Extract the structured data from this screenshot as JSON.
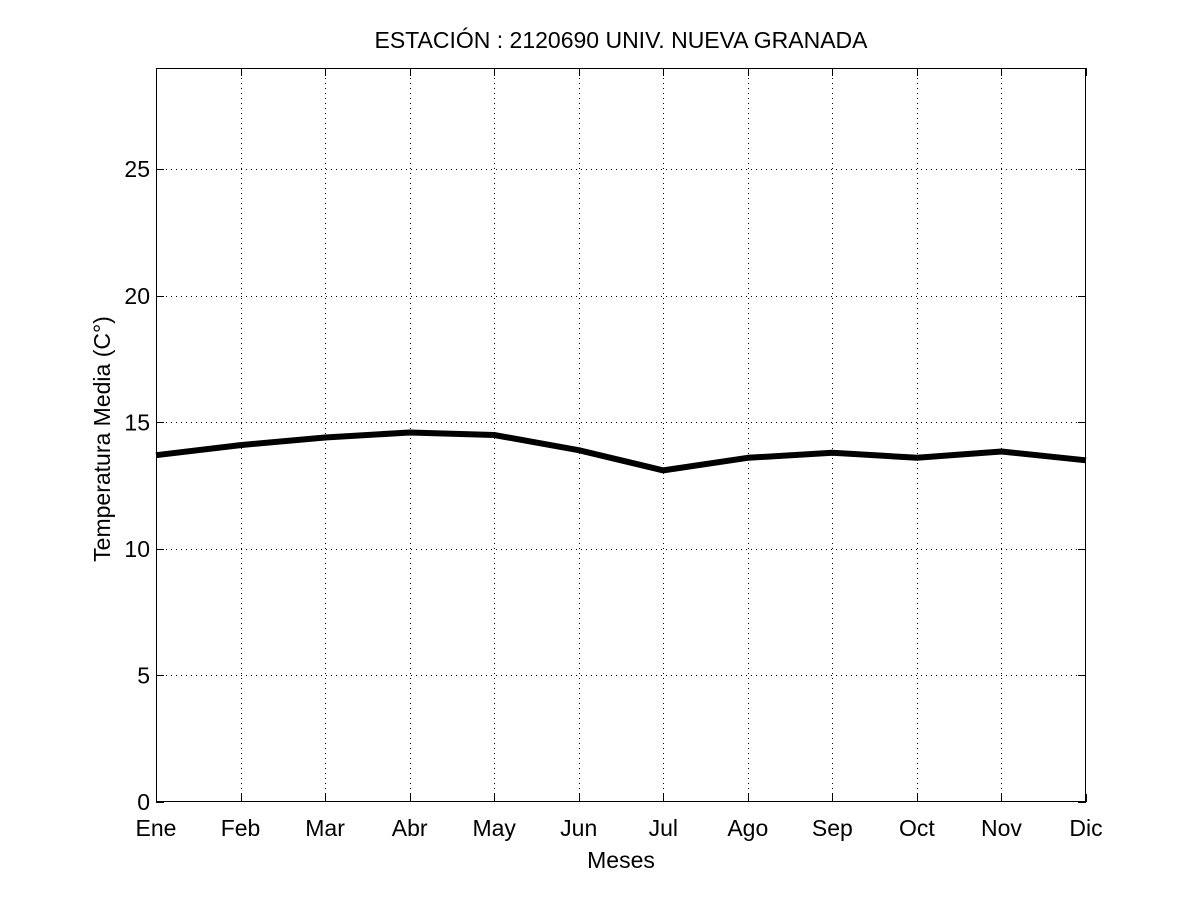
{
  "chart_data": {
    "type": "line",
    "title": "ESTACIÓN :  2120690  UNIV. NUEVA GRANADA",
    "xlabel": "Meses",
    "ylabel": "Temperatura Media (C°)",
    "categories": [
      "Ene",
      "Feb",
      "Mar",
      "Abr",
      "May",
      "Jun",
      "Jul",
      "Ago",
      "Sep",
      "Oct",
      "Nov",
      "Dic"
    ],
    "series": [
      {
        "values": [
          13.7,
          14.1,
          14.4,
          14.6,
          14.5,
          13.9,
          13.1,
          13.6,
          13.8,
          13.6,
          13.85,
          13.5
        ],
        "color": "#000000"
      }
    ],
    "ylim": [
      0,
      29
    ],
    "yticks": [
      0,
      5,
      10,
      15,
      20,
      25
    ],
    "grid": true,
    "grid_style": "dotted",
    "legend": "none"
  }
}
